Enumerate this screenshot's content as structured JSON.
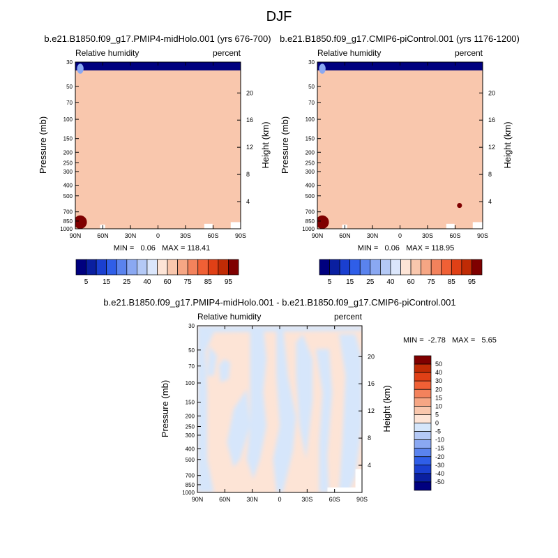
{
  "figure": {
    "title": "DJF"
  },
  "colors": {
    "rh_palette": [
      "#00007f",
      "#0a1fa0",
      "#1a3fd0",
      "#2f5ee8",
      "#5a83ee",
      "#8aa8f2",
      "#b4c9f6",
      "#dbe6fb",
      "#fde4d6",
      "#f9c7ad",
      "#f6a684",
      "#f3825c",
      "#f06035",
      "#e04016",
      "#c02b05",
      "#7f0000"
    ],
    "diff_palette": [
      "#00007f",
      "#0a1fa0",
      "#1a3fd0",
      "#2f5ee8",
      "#5a83ee",
      "#8aa8f2",
      "#b4c9f6",
      "#d5e6fb",
      "#fde4d6",
      "#f9c7ad",
      "#f6a684",
      "#f3825c",
      "#f06035",
      "#e04016",
      "#c02b05",
      "#7f0000"
    ]
  },
  "chart_data": [
    {
      "type": "heatmap",
      "title": "b.e21.B1850.f09_g17.PMIP4-midHolo.001 (yrs 676-700)",
      "left_label": "Relative humidity",
      "right_label": "percent",
      "ylabel": "Pressure (mb)",
      "ylabel_right": "Height (km)",
      "x_ticks": [
        "90N",
        "60N",
        "30N",
        "0",
        "30S",
        "60S",
        "90S"
      ],
      "y_ticks": [
        "30",
        "50",
        "70",
        "100",
        "150",
        "200",
        "250",
        "300",
        "400",
        "500",
        "700",
        "850",
        "1000"
      ],
      "height_ticks": [
        "20",
        "16",
        "12",
        "8",
        "4"
      ],
      "x_range": [
        90,
        -90
      ],
      "y_range": [
        1000,
        30
      ],
      "stats": "MIN =   0.06   MAX = 118.41",
      "colorbar_labels": [
        "5",
        "15",
        "25",
        "40",
        "60",
        "75",
        "85",
        "95"
      ]
    },
    {
      "type": "heatmap",
      "title": "b.e21.B1850.f09_g17.CMIP6-piControl.001 (yrs 1176-1200)",
      "left_label": "Relative humidity",
      "right_label": "percent",
      "ylabel": "Pressure (mb)",
      "ylabel_right": "Height (km)",
      "x_ticks": [
        "90N",
        "60N",
        "30N",
        "0",
        "30S",
        "60S",
        "90S"
      ],
      "y_ticks": [
        "30",
        "50",
        "70",
        "100",
        "150",
        "200",
        "250",
        "300",
        "400",
        "500",
        "700",
        "850",
        "1000"
      ],
      "height_ticks": [
        "20",
        "16",
        "12",
        "8",
        "4"
      ],
      "x_range": [
        90,
        -90
      ],
      "y_range": [
        1000,
        30
      ],
      "stats": "MIN =   0.06   MAX = 118.95",
      "colorbar_labels": [
        "5",
        "15",
        "25",
        "40",
        "60",
        "75",
        "85",
        "95"
      ]
    },
    {
      "type": "heatmap",
      "title": "b.e21.B1850.f09_g17.PMIP4-midHolo.001 - b.e21.B1850.f09_g17.CMIP6-piControl.001",
      "left_label": "Relative humidity",
      "right_label": "percent",
      "ylabel": "Pressure (mb)",
      "ylabel_right": "Height (km)",
      "x_ticks": [
        "90N",
        "60N",
        "30N",
        "0",
        "30S",
        "60S",
        "90S"
      ],
      "y_ticks": [
        "30",
        "50",
        "70",
        "100",
        "150",
        "200",
        "250",
        "300",
        "400",
        "500",
        "700",
        "850",
        "1000"
      ],
      "height_ticks": [
        "20",
        "16",
        "12",
        "8",
        "4"
      ],
      "x_range": [
        90,
        -90
      ],
      "y_range": [
        1000,
        30
      ],
      "stats": "MIN =  -2.78   MAX =   5.65",
      "colorbar_labels": [
        "50",
        "40",
        "30",
        "20",
        "15",
        "10",
        "5",
        "0",
        "-5",
        "-10",
        "-15",
        "-20",
        "-30",
        "-40",
        "-50"
      ]
    }
  ]
}
